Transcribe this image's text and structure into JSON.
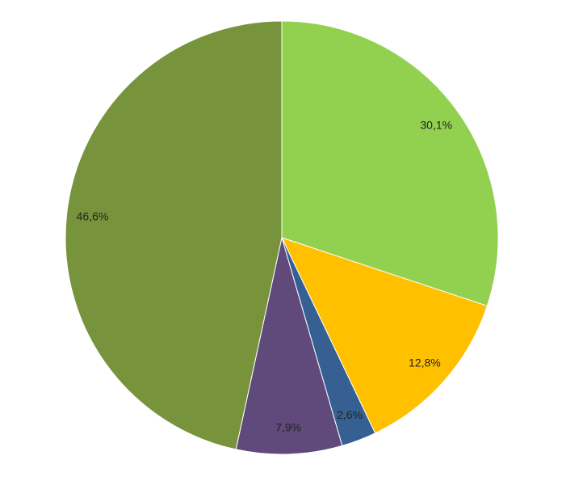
{
  "chart_data": {
    "type": "pie",
    "values": [
      30.1,
      12.8,
      2.6,
      7.9,
      46.6
    ],
    "value_labels": [
      "30,1%",
      "12,8%",
      "2,6%",
      "7,9%",
      "46,6%"
    ],
    "colors": [
      "#92d050",
      "#ffc000",
      "#376092",
      "#604a7b",
      "#77933c"
    ]
  }
}
